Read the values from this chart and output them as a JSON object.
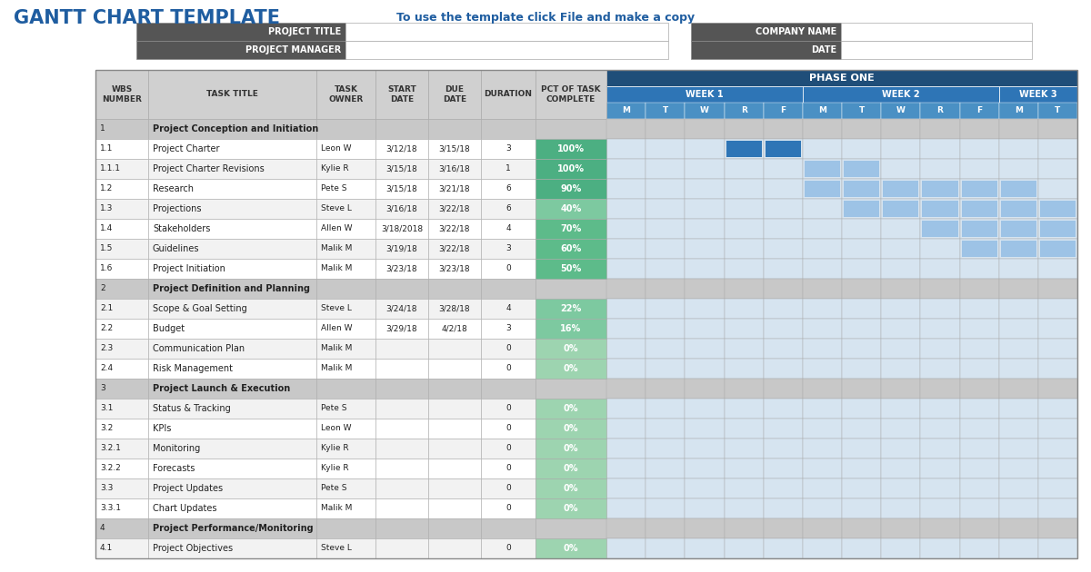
{
  "title": "GANTT CHART TEMPLATE",
  "subtitle": "To use the template click File and make a copy",
  "title_color": "#1F5DA0",
  "subtitle_color": "#1F5DA0",
  "bg_color": "#FFFFFF",
  "header_bg": "#555555",
  "header_fg": "#FFFFFF",
  "phase_header_bg": "#1F4E79",
  "week_header_bg": "#2E75B6",
  "day_header_bg": "#4A90C4",
  "col_header_bg": "#D0D0D0",
  "row_section_bg": "#C8C8C8",
  "row_white": "#FFFFFF",
  "row_light": "#F2F2F2",
  "gantt_cell_light": "#D6E4F0",
  "gantt_cell_white": "#FFFFFF",
  "gantt_dark_blue": "#2E75B6",
  "gantt_light_blue": "#9DC3E6",
  "pct_green_high": "#4CAF82",
  "pct_green_low": "#7DC9A0",
  "border_color": "#AAAAAA",
  "rows": [
    {
      "wbs": "1",
      "title": "Project Conception and Initiation",
      "owner": "",
      "start": "",
      "due": "",
      "dur": "",
      "pct": "",
      "type": "section",
      "gantt": []
    },
    {
      "wbs": "1.1",
      "title": "Project Charter",
      "owner": "Leon W",
      "start": "3/12/18",
      "due": "3/15/18",
      "dur": "3",
      "pct": "100%",
      "type": "task",
      "gantt": [
        3,
        4
      ]
    },
    {
      "wbs": "1.1.1",
      "title": "Project Charter Revisions",
      "owner": "Kylie R",
      "start": "3/15/18",
      "due": "3/16/18",
      "dur": "1",
      "pct": "100%",
      "type": "task",
      "gantt": [
        5,
        6
      ]
    },
    {
      "wbs": "1.2",
      "title": "Research",
      "owner": "Pete S",
      "start": "3/15/18",
      "due": "3/21/18",
      "dur": "6",
      "pct": "90%",
      "type": "task",
      "gantt": [
        5,
        6,
        7,
        8,
        9,
        10
      ]
    },
    {
      "wbs": "1.3",
      "title": "Projections",
      "owner": "Steve L",
      "start": "3/16/18",
      "due": "3/22/18",
      "dur": "6",
      "pct": "40%",
      "type": "task",
      "gantt": [
        6,
        7,
        8,
        9,
        10,
        11
      ]
    },
    {
      "wbs": "1.4",
      "title": "Stakeholders",
      "owner": "Allen W",
      "start": "3/18/2018",
      "due": "3/22/18",
      "dur": "4",
      "pct": "70%",
      "type": "task",
      "gantt": [
        8,
        9,
        10,
        11
      ]
    },
    {
      "wbs": "1.5",
      "title": "Guidelines",
      "owner": "Malik M",
      "start": "3/19/18",
      "due": "3/22/18",
      "dur": "3",
      "pct": "60%",
      "type": "task",
      "gantt": [
        9,
        10,
        11
      ]
    },
    {
      "wbs": "1.6",
      "title": "Project Initiation",
      "owner": "Malik M",
      "start": "3/23/18",
      "due": "3/23/18",
      "dur": "0",
      "pct": "50%",
      "type": "task",
      "gantt": []
    },
    {
      "wbs": "2",
      "title": "Project Definition and Planning",
      "owner": "",
      "start": "",
      "due": "",
      "dur": "",
      "pct": "",
      "type": "section",
      "gantt": []
    },
    {
      "wbs": "2.1",
      "title": "Scope & Goal Setting",
      "owner": "Steve L",
      "start": "3/24/18",
      "due": "3/28/18",
      "dur": "4",
      "pct": "22%",
      "type": "task",
      "gantt": []
    },
    {
      "wbs": "2.2",
      "title": "Budget",
      "owner": "Allen W",
      "start": "3/29/18",
      "due": "4/2/18",
      "dur": "3",
      "pct": "16%",
      "type": "task",
      "gantt": []
    },
    {
      "wbs": "2.3",
      "title": "Communication Plan",
      "owner": "Malik M",
      "start": "",
      "due": "",
      "dur": "0",
      "pct": "0%",
      "type": "task",
      "gantt": []
    },
    {
      "wbs": "2.4",
      "title": "Risk Management",
      "owner": "Malik M",
      "start": "",
      "due": "",
      "dur": "0",
      "pct": "0%",
      "type": "task",
      "gantt": []
    },
    {
      "wbs": "3",
      "title": "Project Launch & Execution",
      "owner": "",
      "start": "",
      "due": "",
      "dur": "",
      "pct": "",
      "type": "section",
      "gantt": []
    },
    {
      "wbs": "3.1",
      "title": "Status & Tracking",
      "owner": "Pete S",
      "start": "",
      "due": "",
      "dur": "0",
      "pct": "0%",
      "type": "task",
      "gantt": []
    },
    {
      "wbs": "3.2",
      "title": "KPIs",
      "owner": "Leon W",
      "start": "",
      "due": "",
      "dur": "0",
      "pct": "0%",
      "type": "task",
      "gantt": []
    },
    {
      "wbs": "3.2.1",
      "title": "Monitoring",
      "owner": "Kylie R",
      "start": "",
      "due": "",
      "dur": "0",
      "pct": "0%",
      "type": "task",
      "gantt": []
    },
    {
      "wbs": "3.2.2",
      "title": "Forecasts",
      "owner": "Kylie R",
      "start": "",
      "due": "",
      "dur": "0",
      "pct": "0%",
      "type": "task",
      "gantt": []
    },
    {
      "wbs": "3.3",
      "title": "Project Updates",
      "owner": "Pete S",
      "start": "",
      "due": "",
      "dur": "0",
      "pct": "0%",
      "type": "task",
      "gantt": []
    },
    {
      "wbs": "3.3.1",
      "title": "Chart Updates",
      "owner": "Malik M",
      "start": "",
      "due": "",
      "dur": "0",
      "pct": "0%",
      "type": "task",
      "gantt": []
    },
    {
      "wbs": "4",
      "title": "Project Performance/Monitoring",
      "owner": "",
      "start": "",
      "due": "",
      "dur": "",
      "pct": "",
      "type": "section",
      "gantt": []
    },
    {
      "wbs": "4.1",
      "title": "Project Objectives",
      "owner": "Steve L",
      "start": "",
      "due": "",
      "dur": "0",
      "pct": "0%",
      "type": "task",
      "gantt": []
    }
  ],
  "days": [
    "M",
    "T",
    "W",
    "R",
    "F",
    "M",
    "T",
    "W",
    "R",
    "F",
    "M",
    "T"
  ],
  "week_day_counts": [
    5,
    5,
    2
  ],
  "week_labels": [
    "WEEK 1",
    "WEEK 2",
    "WEEK 3"
  ]
}
